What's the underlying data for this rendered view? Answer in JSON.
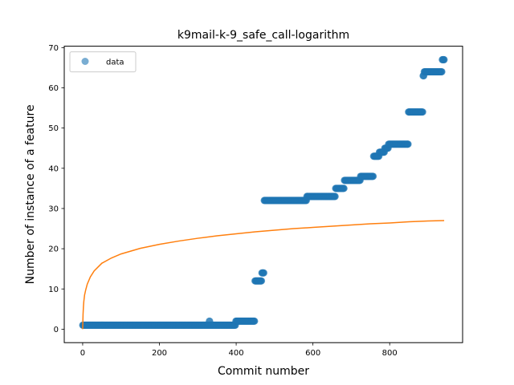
{
  "chart_data": {
    "type": "scatter",
    "title": "k9mail-k-9_safe_call-logarithm",
    "xlabel": "Commit number",
    "ylabel": "Number of instance of a feature",
    "xlim": [
      -48,
      990
    ],
    "ylim": [
      -3.35,
      70.35
    ],
    "xticks": [
      0,
      200,
      400,
      600,
      800
    ],
    "yticks": [
      0,
      10,
      20,
      30,
      40,
      50,
      60,
      70
    ],
    "grid": false,
    "legend": {
      "placement": "upper-left",
      "entries": [
        "data"
      ]
    },
    "colors": {
      "data": "#1f77b4",
      "fit": "#ff7f0e"
    },
    "series": [
      {
        "name": "data",
        "kind": "scatter",
        "segments": [
          {
            "x_start": 0,
            "x_end": 330,
            "y": 1
          },
          {
            "x_start": 330,
            "x_end": 331,
            "y": 2
          },
          {
            "x_start": 331,
            "x_end": 398,
            "y": 1
          },
          {
            "x_start": 399,
            "x_end": 448,
            "y": 2
          },
          {
            "x_start": 449,
            "x_end": 466,
            "y": 12
          },
          {
            "x_start": 467,
            "x_end": 472,
            "y": 14
          },
          {
            "x_start": 473,
            "x_end": 583,
            "y": 32
          },
          {
            "x_start": 584,
            "x_end": 658,
            "y": 33
          },
          {
            "x_start": 659,
            "x_end": 681,
            "y": 35
          },
          {
            "x_start": 682,
            "x_end": 723,
            "y": 37
          },
          {
            "x_start": 724,
            "x_end": 757,
            "y": 38
          },
          {
            "x_start": 758,
            "x_end": 772,
            "y": 43
          },
          {
            "x_start": 773,
            "x_end": 786,
            "y": 44
          },
          {
            "x_start": 787,
            "x_end": 796,
            "y": 45
          },
          {
            "x_start": 797,
            "x_end": 848,
            "y": 46
          },
          {
            "x_start": 849,
            "x_end": 886,
            "y": 54
          },
          {
            "x_start": 887,
            "x_end": 889,
            "y": 63
          },
          {
            "x_start": 890,
            "x_end": 936,
            "y": 64
          },
          {
            "x_start": 937,
            "x_end": 942,
            "y": 67
          }
        ]
      },
      {
        "kind": "line",
        "points": [
          [
            0,
            0
          ],
          [
            1,
            3.7
          ],
          [
            2,
            5.6
          ],
          [
            3,
            6.9
          ],
          [
            5,
            8.5
          ],
          [
            8,
            9.8
          ],
          [
            12,
            11.2
          ],
          [
            20,
            13.0
          ],
          [
            30,
            14.5
          ],
          [
            50,
            16.4
          ],
          [
            75,
            17.7
          ],
          [
            100,
            18.7
          ],
          [
            150,
            20.1
          ],
          [
            200,
            21.1
          ],
          [
            250,
            21.9
          ],
          [
            300,
            22.6
          ],
          [
            350,
            23.2
          ],
          [
            400,
            23.7
          ],
          [
            450,
            24.2
          ],
          [
            500,
            24.6
          ],
          [
            550,
            25.0
          ],
          [
            600,
            25.3
          ],
          [
            650,
            25.6
          ],
          [
            700,
            25.9
          ],
          [
            750,
            26.2
          ],
          [
            800,
            26.4
          ],
          [
            850,
            26.7
          ],
          [
            900,
            26.9
          ],
          [
            942,
            27.0
          ]
        ]
      }
    ]
  }
}
